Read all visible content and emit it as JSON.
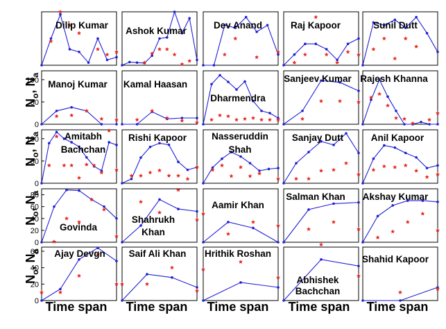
{
  "figure": {
    "ylabel_prefix": [
      "N",
      "o",
      ", N",
      "a"
    ],
    "xlabel": "Time span"
  },
  "chart_data": {
    "type": "line",
    "layout": "5x5 small multiples",
    "series_styles": {
      "N_o": {
        "color": "#1f1fd6",
        "marker": "dot",
        "line": "solid"
      },
      "N_a": {
        "color": "#e8241c",
        "marker": "star",
        "line": "none"
      }
    },
    "panels": [
      {
        "name": "Dilip Kumar",
        "ylim": [
          0,
          40
        ],
        "yticks": [],
        "no_x": [
          0,
          1,
          2,
          3,
          4,
          5,
          6,
          7,
          8
        ],
        "no_y": [
          0,
          20,
          38,
          12,
          10,
          2,
          20,
          4,
          6
        ],
        "na": [
          [
            1,
            18
          ],
          [
            2,
            40
          ],
          [
            3,
            30
          ],
          [
            4,
            24
          ],
          [
            6,
            12
          ],
          [
            7,
            8
          ],
          [
            8,
            10
          ]
        ]
      },
      {
        "name": "Ashok Kumar",
        "ylim": [
          0,
          100
        ],
        "yticks": [],
        "no_x": [
          0,
          1,
          2,
          3,
          4,
          5,
          6,
          7,
          8,
          9,
          10
        ],
        "no_y": [
          0,
          6,
          5,
          4,
          18,
          50,
          52,
          100,
          60,
          88,
          10
        ],
        "na": [
          [
            3,
            5
          ],
          [
            4,
            22
          ],
          [
            5,
            30
          ],
          [
            6,
            30
          ],
          [
            7,
            20
          ],
          [
            8,
            2
          ],
          [
            9,
            8
          ]
        ]
      },
      {
        "name": "Dev Anand",
        "ylim": [
          0,
          40
        ],
        "yticks": [],
        "no_x": [
          0,
          1,
          2,
          3,
          4,
          5,
          6,
          7
        ],
        "no_y": [
          0,
          0,
          30,
          28,
          36,
          25,
          30,
          8
        ],
        "na": [
          [
            2,
            8
          ],
          [
            3,
            20
          ],
          [
            5,
            6
          ],
          [
            7,
            10
          ]
        ]
      },
      {
        "name": "Raj Kapoor",
        "ylim": [
          0,
          40
        ],
        "yticks": [],
        "no_x": [
          0,
          1,
          2,
          3,
          4,
          5,
          6,
          7
        ],
        "no_y": [
          0,
          8,
          16,
          16,
          12,
          4,
          16,
          20
        ],
        "na": [
          [
            1,
            2
          ],
          [
            2,
            8
          ],
          [
            3,
            36
          ],
          [
            4,
            8
          ],
          [
            5,
            2
          ],
          [
            6,
            10
          ],
          [
            7,
            8
          ]
        ]
      },
      {
        "name": "Sunil Dutt",
        "ylim": [
          0,
          40
        ],
        "yticks": [],
        "no_x": [
          0,
          1,
          2,
          3,
          4,
          5,
          6,
          7
        ],
        "no_y": [
          0,
          32,
          30,
          34,
          28,
          36,
          24,
          10
        ],
        "na": [
          [
            1,
            12
          ],
          [
            2,
            20
          ],
          [
            3,
            5
          ],
          [
            4,
            20
          ],
          [
            5,
            14
          ]
        ]
      },
      {
        "name": "Manoj Kumar",
        "ylim": [
          0,
          120
        ],
        "yticks": [
          0,
          50,
          100
        ],
        "no_x": [
          0,
          1,
          2,
          3,
          4,
          5
        ],
        "no_y": [
          0,
          30,
          38,
          30,
          0,
          0
        ],
        "na": [
          [
            1,
            18
          ],
          [
            2,
            20
          ],
          [
            3,
            30
          ],
          [
            4,
            12
          ],
          [
            5,
            10
          ]
        ]
      },
      {
        "name": "Kamal Haasan",
        "ylim": [
          0,
          120
        ],
        "yticks": [],
        "no_x": [
          0,
          1,
          2,
          3,
          4,
          5
        ],
        "no_y": [
          0,
          0,
          28,
          12,
          14,
          14
        ],
        "na": [
          [
            1,
            10
          ],
          [
            2,
            30
          ],
          [
            3,
            14
          ],
          [
            4,
            8
          ],
          [
            5,
            4
          ]
        ]
      },
      {
        "name": "Dharmendra",
        "ylim": [
          0,
          120
        ],
        "yticks": [],
        "no_x": [
          0,
          1,
          2,
          3,
          4,
          5,
          6,
          7,
          8,
          9
        ],
        "no_y": [
          0,
          90,
          110,
          95,
          78,
          96,
          52,
          30,
          25,
          14
        ],
        "na": [
          [
            1,
            10
          ],
          [
            2,
            20
          ],
          [
            3,
            18
          ],
          [
            4,
            10
          ],
          [
            5,
            12
          ],
          [
            6,
            14
          ],
          [
            7,
            10
          ],
          [
            8,
            10
          ],
          [
            9,
            10
          ]
        ]
      },
      {
        "name": "Sanjeev Kumar",
        "ylim": [
          0,
          120
        ],
        "yticks": [],
        "no_x": [
          0,
          1,
          2,
          3,
          4
        ],
        "no_y": [
          0,
          30,
          98,
          94,
          75
        ],
        "na": [
          [
            1,
            12
          ],
          [
            2,
            52
          ],
          [
            3,
            52
          ],
          [
            4,
            50
          ]
        ]
      },
      {
        "name": "Rajesh Khanna",
        "ylim": [
          0,
          120
        ],
        "yticks": [],
        "no_x": [
          0,
          1,
          2,
          3,
          4,
          5,
          6,
          7,
          8,
          9
        ],
        "no_y": [
          0,
          55,
          100,
          62,
          30,
          0,
          0,
          5,
          0,
          0
        ],
        "na": [
          [
            1,
            60
          ],
          [
            2,
            68
          ],
          [
            3,
            42
          ],
          [
            4,
            14
          ],
          [
            5,
            12
          ],
          [
            6,
            2
          ],
          [
            8,
            10
          ],
          [
            9,
            25
          ]
        ]
      },
      {
        "name": "Amitabh Bachchan",
        "ylim": [
          0,
          120
        ],
        "yticks": [
          0,
          50,
          100
        ],
        "no_x": [
          0,
          1,
          2,
          3,
          4,
          5,
          6,
          7,
          8,
          9,
          10
        ],
        "no_y": [
          0,
          90,
          115,
          100,
          92,
          82,
          58,
          38,
          28,
          92,
          86
        ],
        "na": [
          [
            1,
            40
          ],
          [
            2,
            105
          ],
          [
            3,
            40
          ],
          [
            4,
            40
          ],
          [
            5,
            12
          ],
          [
            6,
            42
          ],
          [
            7,
            40
          ],
          [
            8,
            24
          ],
          [
            9,
            118
          ],
          [
            10,
            30
          ]
        ]
      },
      {
        "name": "Rishi Kapoor",
        "ylim": [
          0,
          100
        ],
        "yticks": [],
        "no_x": [
          0,
          1,
          2,
          3,
          4,
          5,
          6,
          7,
          8
        ],
        "no_y": [
          0,
          8,
          48,
          68,
          75,
          72,
          40,
          25,
          30
        ],
        "na": [
          [
            1,
            14
          ],
          [
            2,
            14
          ],
          [
            3,
            20
          ],
          [
            4,
            24
          ],
          [
            5,
            14
          ],
          [
            6,
            14
          ],
          [
            7,
            8
          ],
          [
            8,
            30
          ]
        ]
      },
      {
        "name": "Nasseruddin Shah",
        "ylim": [
          0,
          120
        ],
        "yticks": [],
        "no_x": [
          0,
          1,
          2,
          3,
          4,
          5,
          6,
          7,
          8
        ],
        "no_y": [
          0,
          35,
          55,
          70,
          60,
          45,
          28,
          32,
          34
        ],
        "na": [
          [
            1,
            30
          ],
          [
            2,
            40
          ],
          [
            3,
            16
          ],
          [
            4,
            36
          ],
          [
            5,
            16
          ],
          [
            6,
            22
          ],
          [
            8,
            10
          ]
        ]
      },
      {
        "name": "Sanjay Dutt",
        "ylim": [
          0,
          120
        ],
        "yticks": [],
        "no_x": [
          0,
          1,
          2,
          3,
          4,
          5,
          6
        ],
        "no_y": [
          0,
          45,
          70,
          94,
          86,
          112,
          68
        ],
        "na": [
          [
            1,
            10
          ],
          [
            2,
            10
          ],
          [
            3,
            28
          ],
          [
            4,
            30
          ],
          [
            5,
            45
          ],
          [
            6,
            20
          ]
        ]
      },
      {
        "name": "Anil Kapoor",
        "ylim": [
          0,
          120
        ],
        "yticks": [],
        "no_x": [
          0,
          1,
          2,
          3,
          4,
          5,
          6,
          7
        ],
        "no_y": [
          0,
          55,
          85,
          80,
          68,
          58,
          34,
          40
        ],
        "na": [
          [
            1,
            30
          ],
          [
            2,
            38
          ],
          [
            3,
            36
          ],
          [
            4,
            40
          ],
          [
            5,
            28
          ],
          [
            6,
            14
          ],
          [
            7,
            20
          ]
        ]
      },
      {
        "name": "Govinda",
        "ylim": [
          0,
          90
        ],
        "yticks": [
          0,
          20,
          40,
          60,
          80
        ],
        "no_x": [
          0,
          1,
          2,
          3,
          4,
          5,
          6
        ],
        "no_y": [
          0,
          60,
          88,
          87,
          72,
          60,
          40
        ],
        "na": [
          [
            1,
            1
          ],
          [
            2,
            40
          ],
          [
            3,
            34
          ],
          [
            4,
            72
          ],
          [
            5,
            55
          ],
          [
            6,
            10
          ]
        ]
      },
      {
        "name": "Shahrukh Khan",
        "ylim": [
          0,
          90
        ],
        "yticks": [],
        "no_x": [
          0,
          1,
          2,
          3,
          4
        ],
        "no_y": [
          0,
          28,
          72,
          56,
          52
        ],
        "na": [
          [
            1,
            68
          ],
          [
            2,
            50
          ],
          [
            3,
            88
          ],
          [
            4,
            38
          ]
        ]
      },
      {
        "name": "Aamir Khan",
        "ylim": [
          0,
          90
        ],
        "yticks": [],
        "no_x": [
          0,
          1,
          2,
          3
        ],
        "no_y": [
          0,
          34,
          24,
          0
        ],
        "na": [
          [
            0,
            48
          ],
          [
            1,
            14
          ],
          [
            2,
            34
          ],
          [
            3,
            28
          ]
        ]
      },
      {
        "name": "Salman Khan",
        "ylim": [
          0,
          90
        ],
        "yticks": [],
        "no_x": [
          0,
          1,
          2,
          3
        ],
        "no_y": [
          0,
          55,
          65,
          67
        ],
        "na": [
          [
            1,
            22
          ],
          [
            2,
            34
          ],
          [
            3,
            22
          ]
        ]
      },
      {
        "name": "Akshay Kumar",
        "ylim": [
          0,
          90
        ],
        "yticks": [],
        "no_x": [
          0,
          1,
          2,
          3,
          4,
          5
        ],
        "no_y": [
          0,
          44,
          62,
          70,
          70,
          68
        ],
        "na": [
          [
            1,
            8
          ],
          [
            2,
            18
          ],
          [
            3,
            34
          ],
          [
            4,
            48
          ],
          [
            5,
            20
          ]
        ]
      },
      {
        "name": "Ajay Devgn",
        "ylim": [
          0,
          65
        ],
        "yticks": [
          0,
          20,
          40,
          60
        ],
        "no_x": [
          0,
          1,
          2,
          3,
          4
        ],
        "no_y": [
          0,
          14,
          50,
          64,
          48
        ],
        "na": [
          [
            0,
            10
          ],
          [
            1,
            10
          ],
          [
            2,
            30
          ],
          [
            3,
            56
          ],
          [
            4,
            20
          ]
        ]
      },
      {
        "name": "Saif Ali Khan",
        "ylim": [
          0,
          65
        ],
        "yticks": [],
        "no_x": [
          0,
          1,
          2,
          3
        ],
        "no_y": [
          0,
          32,
          28,
          16
        ],
        "na": [
          [
            0,
            20
          ],
          [
            1,
            20
          ],
          [
            2,
            40
          ],
          [
            3,
            12
          ]
        ]
      },
      {
        "name": "Hrithik Roshan",
        "ylim": [
          0,
          65
        ],
        "yticks": [],
        "no_x": [
          0,
          1,
          2
        ],
        "no_y": [
          0,
          22,
          16
        ],
        "na": [
          [
            0,
            38
          ],
          [
            1,
            47
          ],
          [
            2,
            28
          ]
        ]
      },
      {
        "name": "Abhishek Bachchan",
        "ylim": [
          0,
          65
        ],
        "yticks": [],
        "no_x": [
          0,
          1,
          2
        ],
        "no_y": [
          0,
          50,
          42
        ],
        "na": [
          [
            1,
            68
          ],
          [
            2,
            30
          ]
        ]
      },
      {
        "name": "Shahid Kapoor",
        "ylim": [
          0,
          65
        ],
        "yticks": [],
        "no_x": [
          0,
          1,
          2
        ],
        "no_y": [
          0,
          0,
          16
        ],
        "na": [
          [
            1,
            10
          ],
          [
            2,
            14
          ]
        ]
      }
    ]
  }
}
